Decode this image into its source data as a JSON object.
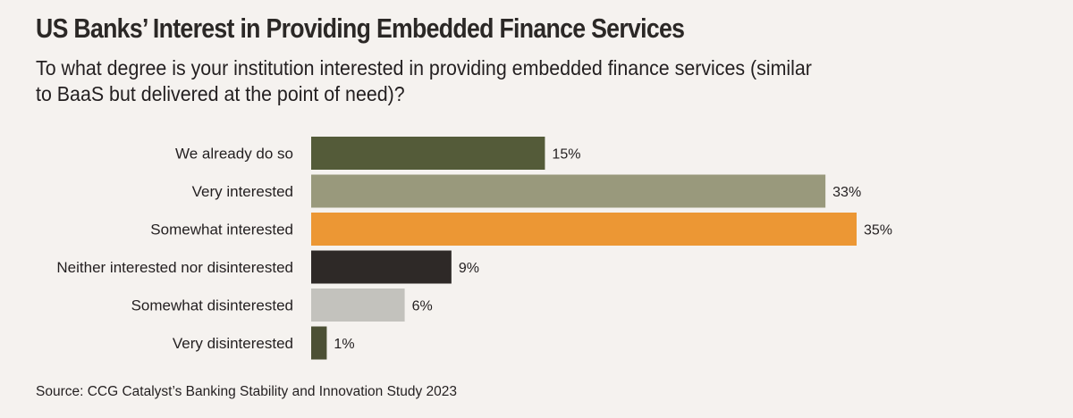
{
  "chart_data": {
    "type": "bar",
    "orientation": "horizontal",
    "title": "US Banks’ Interest in Providing Embedded Finance Services",
    "subtitle_lines": [
      "To what degree is your institution interested in providing embedded finance services (similar",
      "to BaaS but delivered at the point of need)?"
    ],
    "categories": [
      "We already do so",
      "Very interested",
      "Somewhat interested",
      "Neither interested nor disinterested",
      "Somewhat disinterested",
      "Very disinterested"
    ],
    "values": [
      15,
      33,
      35,
      9,
      6,
      1
    ],
    "value_labels": [
      "15%",
      "33%",
      "35%",
      "9%",
      "6%",
      "1%"
    ],
    "colors": [
      "#545b39",
      "#99997c",
      "#ec9734",
      "#2e2927",
      "#c3c2bd",
      "#4c5035"
    ],
    "unit": "%",
    "xlabel": "",
    "ylabel": "",
    "xlim": [
      0,
      35
    ],
    "grid": false,
    "legend": "none",
    "source": "Source: CCG Catalyst’s Banking Stability and Innovation Study 2023"
  }
}
